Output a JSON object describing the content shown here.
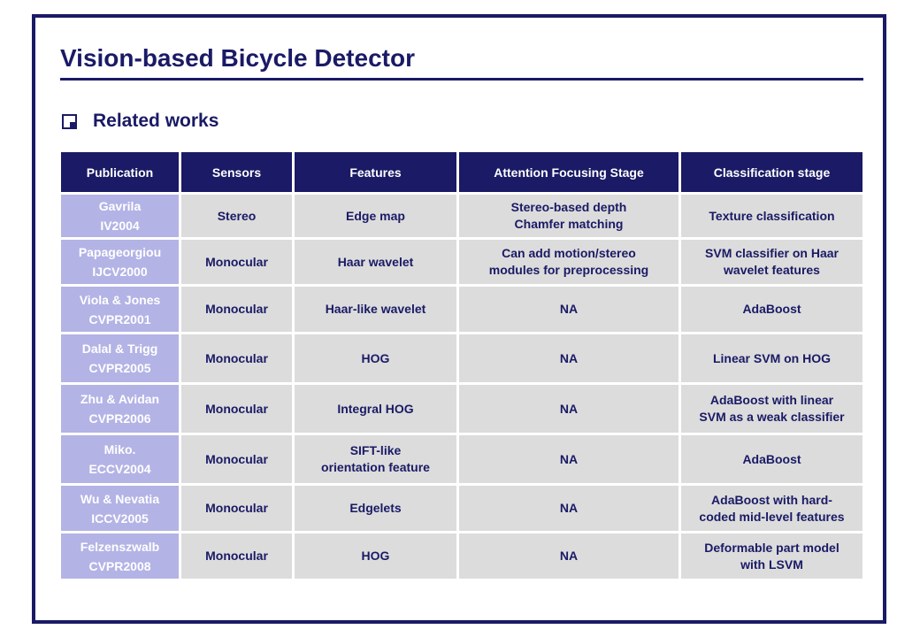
{
  "slide": {
    "title": "Vision-based Bicycle Detector",
    "section": "Related works",
    "bullet_icon": "square-bullet-icon"
  },
  "table": {
    "headers": [
      "Publication",
      "Sensors",
      "Features",
      "Attention Focusing Stage",
      "Classification stage"
    ],
    "rows": [
      {
        "pub": [
          "Gavrila",
          "IV2004"
        ],
        "sensors": [
          "Stereo"
        ],
        "features": [
          "Edge map"
        ],
        "attention": [
          "Stereo-based depth",
          "Chamfer matching"
        ],
        "classification": [
          "Texture classification"
        ]
      },
      {
        "pub": [
          "Papageorgiou",
          "IJCV2000"
        ],
        "sensors": [
          "Monocular"
        ],
        "features": [
          "Haar wavelet"
        ],
        "attention": [
          "Can add motion/stereo",
          "modules for preprocessing"
        ],
        "classification": [
          "SVM classifier on Haar",
          "wavelet features"
        ]
      },
      {
        "pub": [
          "Viola & Jones",
          "CVPR2001"
        ],
        "sensors": [
          "Monocular"
        ],
        "features": [
          "Haar-like wavelet"
        ],
        "attention": [
          "NA"
        ],
        "classification": [
          "AdaBoost"
        ]
      },
      {
        "pub": [
          "Dalal & Trigg",
          "CVPR2005"
        ],
        "sensors": [
          "Monocular"
        ],
        "features": [
          "HOG"
        ],
        "attention": [
          "NA"
        ],
        "classification": [
          "Linear SVM on HOG"
        ]
      },
      {
        "pub": [
          "Zhu & Avidan",
          "CVPR2006"
        ],
        "sensors": [
          "Monocular"
        ],
        "features": [
          "Integral HOG"
        ],
        "attention": [
          "NA"
        ],
        "classification": [
          "AdaBoost with linear",
          "SVM as a weak classifier"
        ]
      },
      {
        "pub": [
          "Miko.",
          "ECCV2004"
        ],
        "sensors": [
          "Monocular"
        ],
        "features": [
          "SIFT-like",
          "orientation feature"
        ],
        "attention": [
          "NA"
        ],
        "classification": [
          "AdaBoost"
        ]
      },
      {
        "pub": [
          "Wu & Nevatia",
          "ICCV2005"
        ],
        "sensors": [
          "Monocular"
        ],
        "features": [
          "Edgelets"
        ],
        "attention": [
          "NA"
        ],
        "classification": [
          "AdaBoost with hard-",
          "coded mid-level features"
        ]
      },
      {
        "pub": [
          "Felzenszwalb",
          "CVPR2008"
        ],
        "sensors": [
          "Monocular"
        ],
        "features": [
          "HOG"
        ],
        "attention": [
          "NA"
        ],
        "classification": [
          "Deformable part model",
          "with  LSVM"
        ]
      }
    ]
  },
  "colors": {
    "navy": "#1a1a66",
    "publication_cell": "#b3b3e6",
    "data_cell": "#dcdcdc"
  }
}
